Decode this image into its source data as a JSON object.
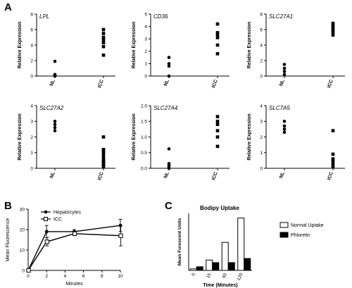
{
  "panel_labels": {
    "a": "A",
    "b": "B",
    "c": "C"
  },
  "chart_data": [
    {
      "id": "lpl",
      "type": "scatter",
      "title": "LPL",
      "ylabel": "Relative Expression",
      "categories": [
        "NL",
        "ICC"
      ],
      "ylim": [
        0,
        8
      ],
      "yticks": [
        0,
        2,
        4,
        6,
        8
      ],
      "points": [
        {
          "group": "NL",
          "values": [
            1.9,
            0.2,
            0.1,
            0.05,
            0.0
          ]
        },
        {
          "group": "ICC",
          "values": [
            6.0,
            5.5,
            5.0,
            4.7,
            4.3,
            3.8,
            2.7
          ]
        }
      ]
    },
    {
      "id": "cd36",
      "type": "scatter",
      "title": "CD36",
      "ylabel": "Relative Expression",
      "categories": [
        "NL",
        "ICC"
      ],
      "ylim": [
        0,
        5
      ],
      "yticks": [
        0,
        1,
        2,
        3,
        4,
        5
      ],
      "points": [
        {
          "group": "NL",
          "values": [
            1.5,
            1.0,
            0.8,
            0.0
          ]
        },
        {
          "group": "ICC",
          "values": [
            4.2,
            3.5,
            3.3,
            3.1,
            2.5,
            1.8
          ]
        }
      ]
    },
    {
      "id": "slc27a1",
      "type": "scatter",
      "title": "SLC27A1",
      "ylabel": "Relative Expression",
      "categories": [
        "NL",
        "ICC"
      ],
      "ylim": [
        0,
        8
      ],
      "yticks": [
        0,
        2,
        4,
        6,
        8
      ],
      "points": [
        {
          "group": "NL",
          "values": [
            1.5,
            1.0,
            0.6,
            0.2
          ]
        },
        {
          "group": "ICC",
          "values": [
            6.8,
            6.5,
            6.2,
            5.9,
            5.7,
            5.3
          ]
        }
      ]
    },
    {
      "id": "slc27a2",
      "type": "scatter",
      "title": "SLC27A2",
      "ylabel": "Relative Expression",
      "categories": [
        "NL",
        "ICC"
      ],
      "ylim": [
        0,
        4
      ],
      "yticks": [
        0,
        1,
        2,
        3,
        4
      ],
      "points": [
        {
          "group": "NL",
          "values": [
            3.0,
            2.8,
            2.6,
            2.4
          ]
        },
        {
          "group": "ICC",
          "values": [
            2.0,
            1.2,
            1.1,
            1.0,
            0.8,
            0.6,
            0.5,
            0.4,
            0.3,
            0.2,
            0.1
          ]
        }
      ]
    },
    {
      "id": "slc27a4",
      "type": "scatter",
      "title": "SLC27A4",
      "ylabel": "Relative Expression",
      "categories": [
        "NL",
        "ICC"
      ],
      "ylim": [
        0,
        2.0
      ],
      "yticks": [
        0.0,
        0.5,
        1.0,
        1.5,
        2.0
      ],
      "points": [
        {
          "group": "NL",
          "values": [
            0.62,
            0.15,
            0.1,
            0.05,
            0.0
          ]
        },
        {
          "group": "ICC",
          "values": [
            1.65,
            1.5,
            1.4,
            1.2,
            1.0,
            0.7
          ]
        }
      ]
    },
    {
      "id": "slc7a5",
      "type": "scatter",
      "title": "SLC7A5",
      "ylabel": "Relative Expression",
      "categories": [
        "NL",
        "ICC"
      ],
      "ylim": [
        0,
        4
      ],
      "yticks": [
        0,
        1,
        2,
        3,
        4
      ],
      "points": [
        {
          "group": "NL",
          "values": [
            3.0,
            2.7,
            2.5,
            2.3
          ]
        },
        {
          "group": "ICC",
          "values": [
            2.4,
            0.9,
            0.6,
            0.5,
            0.3,
            0.1
          ]
        }
      ]
    },
    {
      "id": "timecourse",
      "type": "line",
      "title": "",
      "ylabel": "Mean Fluorescence",
      "xlabel": "Minutes",
      "xlim": [
        0,
        10
      ],
      "ylim": [
        0,
        30
      ],
      "xticks": [
        0,
        2,
        4,
        6,
        8,
        10
      ],
      "yticks": [
        0,
        10,
        20,
        30
      ],
      "legend_position": "top-right",
      "series": [
        {
          "name": "Hepatocytes",
          "marker": "filled-circle",
          "x": [
            0,
            2,
            5,
            10
          ],
          "y": [
            0,
            19,
            19,
            22
          ],
          "err": [
            0,
            3,
            1,
            3
          ]
        },
        {
          "name": "ICC",
          "marker": "open-square",
          "x": [
            0,
            2,
            5,
            10
          ],
          "y": [
            0,
            14,
            18,
            17
          ],
          "err": [
            0,
            2,
            1,
            5
          ]
        }
      ]
    },
    {
      "id": "bodipy",
      "type": "bar",
      "title": "Bodipy Uptake",
      "ylabel": "Mean Furescent Units",
      "xlabel": "Time (Minutes)",
      "ylim": [
        0,
        110
      ],
      "categories": [
        "0",
        "15",
        "60",
        "120"
      ],
      "legend_position": "right",
      "series": [
        {
          "name": "Normal Uptake",
          "color": "#ffffff",
          "values": [
            3,
            20,
            54,
            101
          ]
        },
        {
          "name": "Phloretin",
          "color": "#000000",
          "values": [
            7,
            15,
            15,
            23
          ]
        }
      ]
    }
  ]
}
